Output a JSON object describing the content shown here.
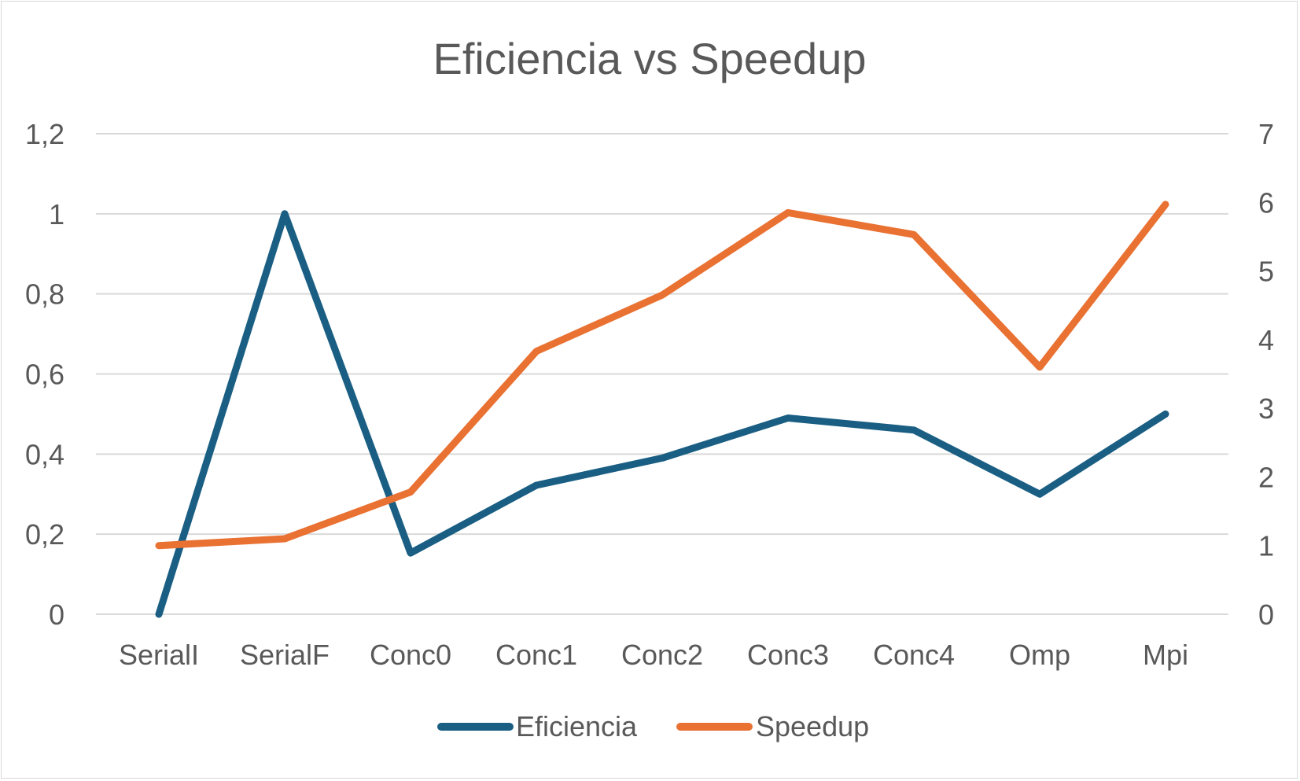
{
  "chart_data": {
    "type": "line",
    "title": "Eficiencia vs Speedup",
    "categories": [
      "SerialI",
      "SerialF",
      "Conc0",
      "Conc1",
      "Conc2",
      "Conc3",
      "Conc4",
      "Omp",
      "Mpi"
    ],
    "y_left": {
      "ylim": [
        0,
        1.2
      ],
      "ticks": [
        "0",
        "0,2",
        "0,4",
        "0,6",
        "0,8",
        "1",
        "1,2"
      ]
    },
    "y_right": {
      "ylim": [
        0,
        7
      ],
      "ticks": [
        "0",
        "1",
        "2",
        "3",
        "4",
        "5",
        "6",
        "7"
      ]
    },
    "series": [
      {
        "name": "Eficiencia",
        "axis": "left",
        "color": "#1a5f83",
        "values": [
          0,
          1.0,
          0.153,
          0.322,
          0.39,
          0.49,
          0.46,
          0.3,
          0.5
        ]
      },
      {
        "name": "Speedup",
        "axis": "right",
        "color": "#e97132",
        "values": [
          1.0,
          1.1,
          1.78,
          3.83,
          4.65,
          5.85,
          5.53,
          3.6,
          5.97
        ]
      }
    ],
    "grid": true,
    "legend": "bottom"
  }
}
